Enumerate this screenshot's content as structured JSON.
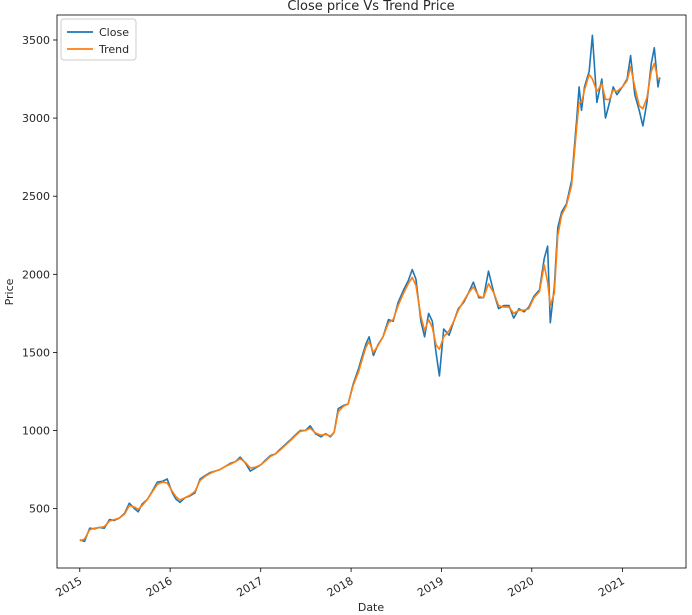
{
  "chart_data": {
    "type": "line",
    "title": "Close price Vs Trend Price",
    "xlabel": "Date",
    "ylabel": "Price",
    "xlim": [
      "2014-10-01",
      "2021-09-15"
    ],
    "ylim": [
      120,
      3660
    ],
    "x_ticks": [
      "2015",
      "2016",
      "2017",
      "2018",
      "2019",
      "2020",
      "2021"
    ],
    "y_ticks": [
      500,
      1000,
      1500,
      2000,
      2500,
      3000,
      3500
    ],
    "grid": false,
    "legend_position": "top-left",
    "colors": {
      "close": "#1f77b4",
      "trend": "#ff7f0e"
    },
    "series": [
      {
        "name": "Close",
        "x": [
          "2015-01-01",
          "2015-01-20",
          "2015-02-10",
          "2015-03-01",
          "2015-03-20",
          "2015-04-10",
          "2015-05-01",
          "2015-05-20",
          "2015-06-10",
          "2015-07-01",
          "2015-07-20",
          "2015-08-10",
          "2015-08-25",
          "2015-09-10",
          "2015-10-01",
          "2015-10-20",
          "2015-11-10",
          "2015-12-01",
          "2015-12-20",
          "2016-01-10",
          "2016-01-25",
          "2016-02-10",
          "2016-03-01",
          "2016-03-20",
          "2016-04-10",
          "2016-05-01",
          "2016-05-20",
          "2016-06-10",
          "2016-07-01",
          "2016-07-20",
          "2016-08-10",
          "2016-09-01",
          "2016-09-20",
          "2016-10-10",
          "2016-11-01",
          "2016-11-20",
          "2016-12-10",
          "2017-01-01",
          "2017-01-20",
          "2017-02-10",
          "2017-03-01",
          "2017-03-20",
          "2017-04-10",
          "2017-05-01",
          "2017-05-20",
          "2017-06-10",
          "2017-07-01",
          "2017-07-20",
          "2017-08-10",
          "2017-09-01",
          "2017-09-20",
          "2017-10-10",
          "2017-10-25",
          "2017-11-10",
          "2017-12-01",
          "2017-12-20",
          "2018-01-10",
          "2018-02-01",
          "2018-02-10",
          "2018-03-01",
          "2018-03-15",
          "2018-04-01",
          "2018-04-20",
          "2018-05-10",
          "2018-06-01",
          "2018-06-20",
          "2018-07-10",
          "2018-08-01",
          "2018-08-20",
          "2018-09-05",
          "2018-09-20",
          "2018-10-10",
          "2018-10-25",
          "2018-11-10",
          "2018-11-25",
          "2018-12-10",
          "2018-12-24",
          "2019-01-10",
          "2019-02-01",
          "2019-02-20",
          "2019-03-10",
          "2019-04-01",
          "2019-04-20",
          "2019-05-10",
          "2019-06-01",
          "2019-06-20",
          "2019-07-10",
          "2019-08-01",
          "2019-08-20",
          "2019-09-10",
          "2019-10-01",
          "2019-10-20",
          "2019-11-10",
          "2019-12-01",
          "2019-12-20",
          "2020-01-10",
          "2020-02-01",
          "2020-02-20",
          "2020-03-05",
          "2020-03-16",
          "2020-04-01",
          "2020-04-15",
          "2020-05-01",
          "2020-05-20",
          "2020-06-10",
          "2020-07-01",
          "2020-07-10",
          "2020-07-20",
          "2020-08-01",
          "2020-08-20",
          "2020-09-02",
          "2020-09-20",
          "2020-10-10",
          "2020-10-25",
          "2020-11-10",
          "2020-11-25",
          "2020-12-10",
          "2021-01-01",
          "2021-01-20",
          "2021-02-03",
          "2021-02-20",
          "2021-03-10",
          "2021-03-25",
          "2021-04-10",
          "2021-04-28",
          "2021-05-10",
          "2021-05-25",
          "2021-06-01"
        ],
        "values": [
          300,
          290,
          375,
          370,
          380,
          375,
          430,
          425,
          440,
          470,
          535,
          500,
          480,
          530,
          560,
          610,
          670,
          675,
          690,
          600,
          560,
          540,
          570,
          580,
          600,
          690,
          710,
          730,
          740,
          750,
          770,
          790,
          800,
          830,
          790,
          740,
          760,
          780,
          810,
          840,
          850,
          880,
          910,
          940,
          970,
          1000,
          1000,
          1030,
          980,
          960,
          980,
          960,
          990,
          1140,
          1160,
          1170,
          1300,
          1400,
          1450,
          1550,
          1600,
          1480,
          1550,
          1600,
          1710,
          1700,
          1820,
          1900,
          1960,
          2030,
          1970,
          1700,
          1600,
          1750,
          1700,
          1500,
          1350,
          1650,
          1610,
          1700,
          1780,
          1820,
          1880,
          1950,
          1850,
          1850,
          2020,
          1880,
          1780,
          1800,
          1800,
          1720,
          1780,
          1760,
          1790,
          1860,
          1900,
          2100,
          2180,
          1690,
          1920,
          2300,
          2400,
          2450,
          2600,
          3000,
          3200,
          3050,
          3200,
          3300,
          3530,
          3100,
          3250,
          3000,
          3100,
          3200,
          3150,
          3200,
          3250,
          3400,
          3150,
          3050,
          2950,
          3100,
          3350,
          3450,
          3200,
          3260
        ]
      },
      {
        "name": "Trend",
        "x": [
          "2015-01-01",
          "2015-01-20",
          "2015-02-10",
          "2015-03-01",
          "2015-03-20",
          "2015-04-10",
          "2015-05-01",
          "2015-05-20",
          "2015-06-10",
          "2015-07-01",
          "2015-07-20",
          "2015-08-10",
          "2015-08-25",
          "2015-09-10",
          "2015-10-01",
          "2015-10-20",
          "2015-11-10",
          "2015-12-01",
          "2015-12-20",
          "2016-01-10",
          "2016-01-25",
          "2016-02-10",
          "2016-03-01",
          "2016-03-20",
          "2016-04-10",
          "2016-05-01",
          "2016-05-20",
          "2016-06-10",
          "2016-07-01",
          "2016-07-20",
          "2016-08-10",
          "2016-09-01",
          "2016-09-20",
          "2016-10-10",
          "2016-11-01",
          "2016-11-20",
          "2016-12-10",
          "2017-01-01",
          "2017-01-20",
          "2017-02-10",
          "2017-03-01",
          "2017-03-20",
          "2017-04-10",
          "2017-05-01",
          "2017-05-20",
          "2017-06-10",
          "2017-07-01",
          "2017-07-20",
          "2017-08-10",
          "2017-09-01",
          "2017-09-20",
          "2017-10-10",
          "2017-10-25",
          "2017-11-10",
          "2017-12-01",
          "2017-12-20",
          "2018-01-10",
          "2018-02-01",
          "2018-02-10",
          "2018-03-01",
          "2018-03-15",
          "2018-04-01",
          "2018-04-20",
          "2018-05-10",
          "2018-06-01",
          "2018-06-20",
          "2018-07-10",
          "2018-08-01",
          "2018-08-20",
          "2018-09-05",
          "2018-09-20",
          "2018-10-10",
          "2018-10-25",
          "2018-11-10",
          "2018-11-25",
          "2018-12-10",
          "2018-12-24",
          "2019-01-10",
          "2019-02-01",
          "2019-02-20",
          "2019-03-10",
          "2019-04-01",
          "2019-04-20",
          "2019-05-10",
          "2019-06-01",
          "2019-06-20",
          "2019-07-10",
          "2019-08-01",
          "2019-08-20",
          "2019-09-10",
          "2019-10-01",
          "2019-10-20",
          "2019-11-10",
          "2019-12-01",
          "2019-12-20",
          "2020-01-10",
          "2020-02-01",
          "2020-02-20",
          "2020-03-05",
          "2020-03-16",
          "2020-04-01",
          "2020-04-15",
          "2020-05-01",
          "2020-05-20",
          "2020-06-10",
          "2020-07-01",
          "2020-07-10",
          "2020-07-20",
          "2020-08-01",
          "2020-08-20",
          "2020-09-02",
          "2020-09-20",
          "2020-10-10",
          "2020-10-25",
          "2020-11-10",
          "2020-11-25",
          "2020-12-10",
          "2021-01-01",
          "2021-01-20",
          "2021-02-03",
          "2021-02-20",
          "2021-03-10",
          "2021-03-25",
          "2021-04-10",
          "2021-04-28",
          "2021-05-10",
          "2021-05-25",
          "2021-06-01"
        ],
        "values": [
          295,
          305,
          365,
          375,
          378,
          385,
          420,
          430,
          440,
          465,
          520,
          510,
          495,
          520,
          560,
          605,
          655,
          670,
          665,
          610,
          575,
          555,
          570,
          585,
          610,
          680,
          705,
          725,
          740,
          750,
          770,
          785,
          800,
          820,
          795,
          760,
          765,
          780,
          805,
          835,
          850,
          875,
          905,
          935,
          965,
          995,
          1000,
          1015,
          985,
          970,
          975,
          965,
          990,
          1120,
          1155,
          1170,
          1290,
          1380,
          1430,
          1530,
          1570,
          1500,
          1545,
          1600,
          1690,
          1710,
          1800,
          1880,
          1940,
          1980,
          1930,
          1730,
          1640,
          1710,
          1660,
          1550,
          1520,
          1600,
          1640,
          1700,
          1770,
          1830,
          1880,
          1920,
          1860,
          1850,
          1940,
          1880,
          1800,
          1790,
          1790,
          1750,
          1770,
          1770,
          1780,
          1850,
          1890,
          2060,
          1950,
          1800,
          1880,
          2250,
          2380,
          2440,
          2570,
          2950,
          3100,
          3100,
          3180,
          3280,
          3250,
          3170,
          3220,
          3120,
          3120,
          3180,
          3170,
          3200,
          3240,
          3330,
          3200,
          3080,
          3060,
          3130,
          3300,
          3350,
          3250,
          3250
        ]
      }
    ]
  }
}
